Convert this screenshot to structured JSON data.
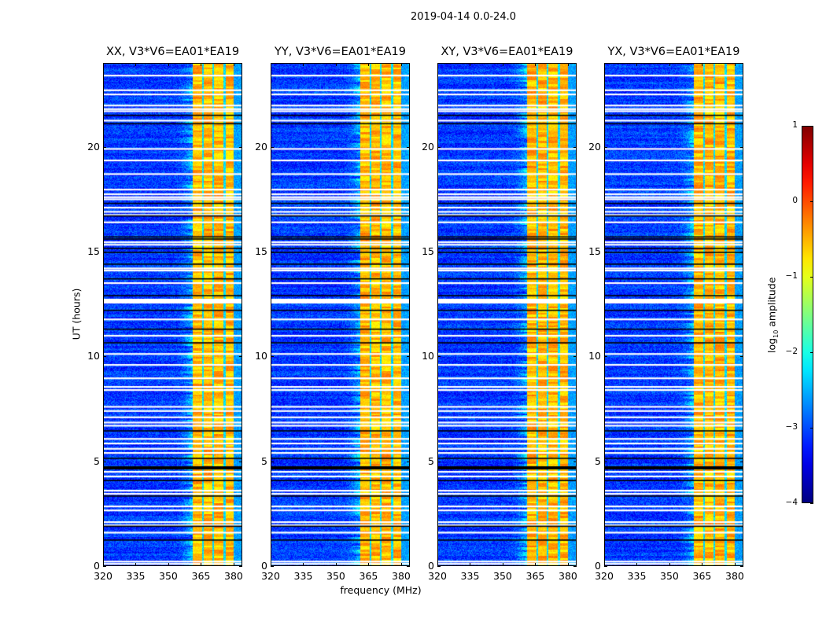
{
  "figure": {
    "suptitle": "2019-04-14 0.0-24.0",
    "ylabel": "UT (hours)",
    "xlabel": "frequency (MHz)"
  },
  "chart_data": {
    "type": "heatmap",
    "panels": [
      {
        "title": "XX, V3*V6=EA01*EA19",
        "seed": 11
      },
      {
        "title": "YY, V3*V6=EA01*EA19",
        "seed": 23
      },
      {
        "title": "XY, V3*V6=EA01*EA19",
        "seed": 37
      },
      {
        "title": "YX, V3*V6=EA01*EA19",
        "seed": 51
      }
    ],
    "xlim": [
      320,
      384
    ],
    "ylim": [
      0,
      24
    ],
    "xticks": [
      320,
      335,
      350,
      365,
      380
    ],
    "xtick_labels": [
      "320",
      "335",
      "350",
      "365",
      "380"
    ],
    "yticks": [
      0,
      5,
      10,
      15,
      20
    ],
    "ytick_labels": [
      "0",
      "5",
      "10",
      "15",
      "20"
    ],
    "xlabel": "frequency (MHz)",
    "ylabel": "UT (hours)",
    "colormap": "jet",
    "colorbar": {
      "label_main": "log",
      "label_sub": "10",
      "label_rest": " amplitude",
      "range": [
        -4,
        1
      ],
      "ticks": [
        1,
        0,
        -1,
        -2,
        -3,
        -4
      ],
      "tick_labels": [
        "1",
        "0",
        "−1",
        "−2",
        "−3",
        "−4"
      ]
    },
    "background_level": -3.1,
    "bright_band_mhz": [
      361,
      380
    ],
    "band_level_range": [
      -1.0,
      0.1
    ],
    "band_gap_channels_mhz": [
      365.8,
      370.5,
      375.6
    ],
    "flagged_hours_white": [
      23.4,
      22.7,
      22.5,
      21.97,
      21.8,
      21.7,
      21.25,
      19.9,
      19.35,
      18.7,
      17.96,
      17.74,
      17.6,
      17.5,
      17.1,
      16.9,
      16.75,
      16.4,
      15.45,
      15.33,
      14.2,
      14.1,
      13.5,
      12.6,
      11.77,
      10.99,
      10.12,
      9.6,
      8.96,
      8.55,
      8.4,
      7.6,
      7.4,
      7.1,
      6.85,
      6.7,
      6.07,
      5.85,
      5.6,
      5.4,
      4.5,
      4.28,
      3.6,
      3.45,
      2.85,
      2.66,
      2.1,
      1.95,
      1.6,
      0.22,
      0.11
    ],
    "flagged_hours_black": [
      21.5,
      21.1,
      17.3,
      16.7,
      15.7,
      15.6,
      15.15,
      14.96,
      14.4,
      13.7,
      12.9,
      12.2,
      11.3,
      10.65,
      6.45,
      5.14,
      4.7,
      4.08,
      3.34,
      1.9,
      1.24
    ]
  }
}
